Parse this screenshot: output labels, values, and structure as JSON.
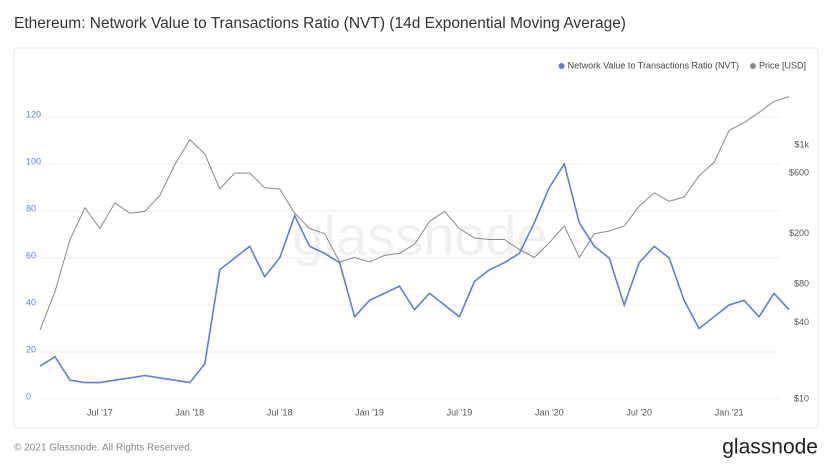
{
  "chart_data": {
    "type": "line",
    "title": "Ethereum: Network Value to Transactions Ratio (NVT) (14d Exponential Moving Average)",
    "watermark": "glassnode",
    "footer": "© 2021 Glassnode. All Rights Reserved.",
    "brand": "glassnode",
    "x": [
      "2017-03",
      "2017-04",
      "2017-05",
      "2017-06",
      "2017-07",
      "2017-08",
      "2017-09",
      "2017-10",
      "2017-11",
      "2017-12",
      "2018-01",
      "2018-02",
      "2018-03",
      "2018-04",
      "2018-05",
      "2018-06",
      "2018-07",
      "2018-08",
      "2018-09",
      "2018-10",
      "2018-11",
      "2018-12",
      "2019-01",
      "2019-02",
      "2019-03",
      "2019-04",
      "2019-05",
      "2019-06",
      "2019-07",
      "2019-08",
      "2019-09",
      "2019-10",
      "2019-11",
      "2019-12",
      "2020-01",
      "2020-02",
      "2020-03",
      "2020-04",
      "2020-05",
      "2020-06",
      "2020-07",
      "2020-08",
      "2020-09",
      "2020-10",
      "2020-11",
      "2020-12",
      "2021-01",
      "2021-02",
      "2021-03",
      "2021-04",
      "2021-05"
    ],
    "xlim": [
      "2017-03",
      "2021-05"
    ],
    "xticks": [
      {
        "value": "2017-07",
        "label": "Jul '17"
      },
      {
        "value": "2018-01",
        "label": "Jan '18"
      },
      {
        "value": "2018-07",
        "label": "Jul '18"
      },
      {
        "value": "2019-01",
        "label": "Jan '19"
      },
      {
        "value": "2019-07",
        "label": "Jul '19"
      },
      {
        "value": "2020-01",
        "label": "Jan '20"
      },
      {
        "value": "2020-07",
        "label": "Jul '20"
      },
      {
        "value": "2021-01",
        "label": "Jan '21"
      }
    ],
    "ylim": [
      0,
      130
    ],
    "yticks": [
      0,
      20,
      40,
      60,
      80,
      100,
      120
    ],
    "y2lim": [
      10,
      2540
    ],
    "y2log": true,
    "y2ticks": [
      {
        "value": 10,
        "label": "$10"
      },
      {
        "value": 40,
        "label": "$40"
      },
      {
        "value": 80,
        "label": "$80"
      },
      {
        "value": 200,
        "label": "$200"
      },
      {
        "value": 600,
        "label": "$600"
      },
      {
        "value": 1000,
        "label": "$1k"
      }
    ],
    "grid": true,
    "legend": "top-right",
    "series": [
      {
        "name": "Network Value to Transactions Ratio (NVT)",
        "color": "#5b7fdc",
        "values": [
          14,
          18,
          8,
          7,
          7,
          8,
          9,
          10,
          9,
          8,
          7,
          15,
          55,
          60,
          65,
          52,
          60,
          78,
          65,
          62,
          58,
          35,
          42,
          45,
          48,
          38,
          45,
          40,
          35,
          50,
          55,
          58,
          62,
          75,
          90,
          100,
          75,
          65,
          60,
          40,
          58,
          65,
          60,
          42,
          30,
          35,
          40,
          42,
          35,
          45,
          38
        ]
      },
      {
        "name": "Price [USD]",
        "color": "#888888",
        "axis": "y2",
        "values": [
          35,
          70,
          180,
          320,
          220,
          350,
          290,
          300,
          400,
          700,
          1100,
          850,
          450,
          600,
          600,
          460,
          450,
          290,
          220,
          200,
          120,
          130,
          120,
          135,
          140,
          165,
          250,
          300,
          220,
          185,
          180,
          180,
          150,
          130,
          170,
          230,
          130,
          200,
          210,
          230,
          330,
          420,
          360,
          390,
          570,
          730,
          1300,
          1500,
          1800,
          2200,
          2400
        ]
      }
    ]
  }
}
